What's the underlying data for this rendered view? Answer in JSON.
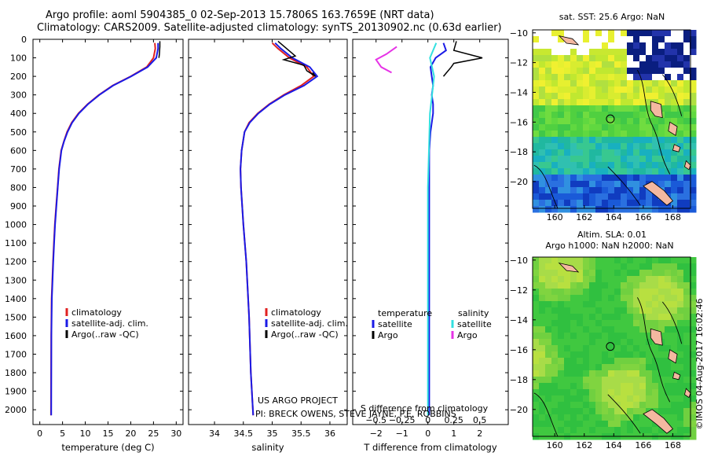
{
  "header": {
    "line1": "Argo profile: aoml 5904385_0 02-Sep-2013 15.7806S 163.7659E (NRT data)",
    "line2": "Climatology: CARS2009. Satellite-adjusted climatology: synTS_20130902.nc (0.63d earlier)"
  },
  "colors": {
    "climatology": "#e02020",
    "satellite": "#1a1ae6",
    "argo": "#000000",
    "sal_satellite": "#33e0e0",
    "sal_argo": "#e633e6"
  },
  "chart_data": [
    {
      "id": "temperature",
      "type": "line",
      "xlabel": "temperature (deg C)",
      "ylabel": "",
      "xlim": [
        -1.5,
        31.5
      ],
      "ylim": [
        2080,
        0
      ],
      "xticks": [
        0,
        5,
        10,
        15,
        20,
        25,
        30
      ],
      "xtick_labels": [
        "0",
        "5",
        "10",
        "15",
        "20",
        "25",
        "30"
      ],
      "yticks": [
        0,
        100,
        200,
        300,
        400,
        500,
        600,
        700,
        800,
        900,
        1000,
        1100,
        1200,
        1300,
        1400,
        1500,
        1600,
        1700,
        1800,
        1900,
        2000
      ],
      "ytick_labels": [
        "0",
        "100",
        "200",
        "300",
        "400",
        "500",
        "600",
        "700",
        "800",
        "900",
        "1000",
        "1100",
        "1200",
        "1300",
        "1400",
        "1500",
        "1600",
        "1700",
        "1800",
        "1900",
        "2000"
      ],
      "legend": [
        "climatology",
        "satellite-adj. clim.",
        "Argo(..raw -QC)"
      ],
      "series": [
        {
          "name": "climatology",
          "color": "#e02020",
          "x": [
            25.3,
            25.4,
            25.0,
            23.5,
            20.0,
            16.0,
            13.0,
            10.5,
            8.5,
            7.0,
            6.0,
            5.3,
            4.7,
            4.2,
            3.9,
            3.6,
            3.3,
            3.1,
            2.9,
            2.75,
            2.6,
            2.5,
            2.45
          ],
          "y": [
            20,
            50,
            100,
            150,
            200,
            250,
            300,
            350,
            400,
            450,
            500,
            550,
            600,
            700,
            800,
            900,
            1000,
            1100,
            1200,
            1300,
            1400,
            1600,
            2030
          ]
        },
        {
          "name": "satellite-adj. clim.",
          "color": "#1a1ae6",
          "x": [
            26.0,
            26.0,
            25.6,
            23.7,
            20.1,
            16.1,
            13.1,
            10.6,
            8.6,
            7.1,
            6.1,
            5.35,
            4.75,
            4.25,
            3.95,
            3.65,
            3.35,
            3.15,
            2.95,
            2.8,
            2.65,
            2.55,
            2.5
          ],
          "y": [
            20,
            50,
            100,
            150,
            200,
            250,
            300,
            350,
            400,
            450,
            500,
            550,
            600,
            700,
            800,
            900,
            1000,
            1100,
            1200,
            1300,
            1400,
            1600,
            2030
          ]
        },
        {
          "name": "Argo(..raw -QC)",
          "color": "#000000",
          "x": [
            26.4,
            26.4,
            26.3,
            26.2
          ],
          "y": [
            10,
            40,
            80,
            100
          ]
        }
      ]
    },
    {
      "id": "salinity",
      "type": "line",
      "xlabel": "salinity",
      "xlim": [
        33.55,
        36.3
      ],
      "ylim": [
        2080,
        0
      ],
      "xticks": [
        34,
        34.5,
        35,
        35.5,
        36
      ],
      "xtick_labels": [
        "34",
        "34.5",
        "35",
        "35.5",
        "36"
      ],
      "legend": [
        "climatology",
        "satellite-adj. clim.",
        "Argo(..raw -QC)"
      ],
      "annotations": [
        "US ARGO PROJECT",
        "PI: BRECK OWENS, STEVE JAYNE, P.E. ROBBINS"
      ],
      "series": [
        {
          "name": "climatology",
          "color": "#e02020",
          "x": [
            35.0,
            35.1,
            35.3,
            35.6,
            35.72,
            35.5,
            35.2,
            34.95,
            34.75,
            34.6,
            34.52,
            34.47,
            34.45,
            34.46,
            34.5,
            34.55,
            34.6,
            34.63,
            34.67
          ],
          "y": [
            20,
            50,
            100,
            150,
            200,
            250,
            300,
            350,
            400,
            450,
            500,
            600,
            700,
            800,
            1000,
            1200,
            1500,
            1800,
            2030
          ]
        },
        {
          "name": "satellite-adj. clim.",
          "color": "#1a1ae6",
          "x": [
            35.05,
            35.15,
            35.35,
            35.65,
            35.78,
            35.55,
            35.22,
            34.96,
            34.76,
            34.61,
            34.52,
            34.47,
            34.45,
            34.46,
            34.5,
            34.55,
            34.6,
            34.63,
            34.67
          ],
          "y": [
            20,
            50,
            100,
            150,
            200,
            250,
            300,
            350,
            400,
            450,
            500,
            600,
            700,
            800,
            1000,
            1200,
            1500,
            1800,
            2030
          ]
        },
        {
          "name": "Argo(..raw -QC)",
          "color": "#000000",
          "x": [
            35.1,
            35.4,
            35.2,
            35.55,
            35.6,
            35.75,
            35.7
          ],
          "y": [
            10,
            90,
            110,
            140,
            170,
            200,
            180
          ]
        }
      ]
    },
    {
      "id": "difference",
      "type": "line",
      "xlabel": "T difference from climatology",
      "xlabel_top": "S difference from climatology",
      "xlim": [
        -2.9,
        3.1
      ],
      "ylim": [
        2080,
        0
      ],
      "xticks": [
        -2,
        -1,
        0,
        1,
        2
      ],
      "xtick_labels": [
        "−2",
        "−1",
        "0",
        "1",
        "2"
      ],
      "s_xticks": [
        -0.5,
        -0.25,
        0,
        0.25,
        0.5
      ],
      "s_xtick_labels": [
        "−0.5",
        "−0.25",
        "0",
        "0.25",
        "0.5"
      ],
      "legend_headers": [
        "temperature",
        "salinity"
      ],
      "legend": [
        "satellite",
        "Argo",
        "satellite",
        "Argo"
      ],
      "series": [
        {
          "name": "T satellite",
          "color": "#1a1ae6",
          "x": [
            0.6,
            0.7,
            0.3,
            0.1,
            0.15,
            0.2,
            0.15,
            0.2,
            0.2,
            0.1,
            0.05,
            0.05,
            0.05,
            0.05,
            0.05,
            0.05
          ],
          "y": [
            20,
            60,
            100,
            150,
            200,
            250,
            300,
            350,
            400,
            500,
            600,
            800,
            1000,
            1400,
            1800,
            2030
          ]
        },
        {
          "name": "T Argo",
          "color": "#000000",
          "x": [
            1.1,
            1.0,
            2.1,
            1.0,
            0.9,
            0.6
          ],
          "y": [
            10,
            60,
            100,
            130,
            150,
            200
          ]
        },
        {
          "name": "S satellite",
          "color": "#33e0e0",
          "x": [
            0.08,
            0.05,
            0.02,
            0.04,
            0.06,
            0.04,
            0.02,
            0.01,
            0.0,
            0.0,
            0.0,
            0.0
          ],
          "y": [
            20,
            60,
            100,
            150,
            200,
            300,
            400,
            600,
            800,
            1200,
            1600,
            2030
          ]
        },
        {
          "name": "S Argo",
          "color": "#e633e6",
          "x": [
            -0.3,
            -0.4,
            -0.5,
            -0.45,
            -0.35
          ],
          "y": [
            40,
            80,
            110,
            150,
            180
          ]
        }
      ]
    },
    {
      "id": "sst_map",
      "type": "heatmap",
      "title": "sat. SST: 25.6 Argo: NaN",
      "xlim": [
        158.5,
        169.2
      ],
      "ylim": [
        -21.8,
        -9.8
      ],
      "xticks": [
        160,
        162,
        164,
        166,
        168
      ],
      "xtick_labels": [
        "160",
        "162",
        "164",
        "166",
        "168"
      ],
      "yticks": [
        -10,
        -12,
        -14,
        -16,
        -18,
        -20
      ],
      "ytick_labels": [
        "−10",
        "−12",
        "−14",
        "−16",
        "−18",
        "−20"
      ],
      "marker": {
        "lon": 163.7659,
        "lat": -15.7806
      }
    },
    {
      "id": "sla_map",
      "type": "heatmap",
      "title": "Altim. SLA: 0.01",
      "subtitle": "Argo h1000: NaN h2000: NaN",
      "xlim": [
        158.5,
        169.2
      ],
      "ylim": [
        -21.8,
        -9.8
      ],
      "xticks": [
        160,
        162,
        164,
        166,
        168
      ],
      "xtick_labels": [
        "160",
        "162",
        "164",
        "166",
        "168"
      ],
      "yticks": [
        -10,
        -12,
        -14,
        -16,
        -18,
        -20
      ],
      "ytick_labels": [
        "−10",
        "−12",
        "−14",
        "−16",
        "−18",
        "−20"
      ],
      "marker": {
        "lon": 163.7659,
        "lat": -15.7806
      }
    }
  ],
  "footer": {
    "watermark": "©IMOS 04-Aug-2017 16:02:46"
  }
}
